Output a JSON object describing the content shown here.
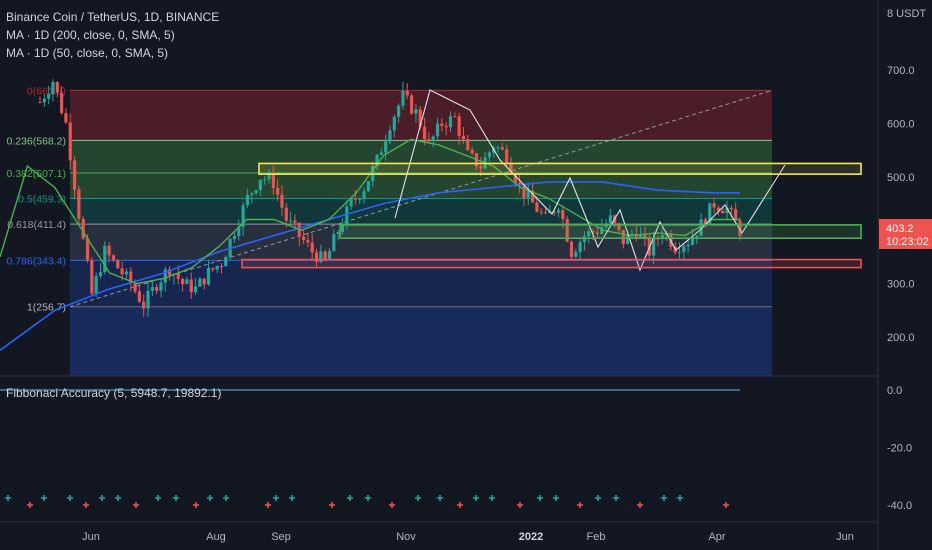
{
  "header": {
    "title": "Binance Coin / TetherUS, 1D, BINANCE",
    "ma200": "MA · 1D (200, close, 0, SMA, 5)",
    "ma50": "MA · 1D (50, close, 0, SMA, 5)",
    "currency": "8 USDT"
  },
  "indicator": {
    "label": "Fibbonaci Accuracy (5, 5948.7, 19892.1)"
  },
  "price_badge": {
    "price": "403.2",
    "countdown": "10:23:02"
  },
  "colors": {
    "background": "#131722",
    "up": "#26a69a",
    "down": "#ef5350",
    "ma200": "#2962ff",
    "ma50": "#4caf50",
    "yellow_box": "#f7e94a",
    "price_tag": "#ef5350"
  },
  "chart_data": {
    "type": "candlestick",
    "symbol": "BNBUSDT",
    "x_tick_labels": [
      "Jun",
      "Aug",
      "Sep",
      "Nov",
      "2022",
      "Feb",
      "Apr",
      "Jun"
    ],
    "y_tick_labels": [
      "700.0",
      "600.0",
      "500.0",
      "300.0",
      "200.0"
    ],
    "ylim": [
      120,
      720
    ],
    "fib_levels": [
      {
        "ratio": "0(661.8)",
        "value": 661.8
      },
      {
        "ratio": "0.236(568.2)",
        "value": 568.2
      },
      {
        "ratio": "0.382(507.1)",
        "value": 507.1
      },
      {
        "ratio": "0.5(459.3)",
        "value": 459.3
      },
      {
        "ratio": "0.618(411.4)",
        "value": 411.4
      },
      {
        "ratio": "0.786(343.4)",
        "value": 343.4
      },
      {
        "ratio": "1(256.7)",
        "value": 256.7
      }
    ],
    "zones": [
      {
        "name": "resistance",
        "low": 505,
        "high": 525
      },
      {
        "name": "support",
        "low": 385,
        "high": 410
      },
      {
        "name": "strong-support",
        "low": 330,
        "high": 345
      }
    ],
    "price_path_approx": [
      [
        0,
        640
      ],
      [
        3,
        680
      ],
      [
        6,
        600
      ],
      [
        9,
        430
      ],
      [
        12,
        280
      ],
      [
        15,
        360
      ],
      [
        18,
        330
      ],
      [
        21,
        300
      ],
      [
        24,
        260
      ],
      [
        27,
        300
      ],
      [
        30,
        330
      ],
      [
        33,
        300
      ],
      [
        36,
        290
      ],
      [
        39,
        320
      ],
      [
        42,
        340
      ],
      [
        45,
        400
      ],
      [
        48,
        460
      ],
      [
        51,
        500
      ],
      [
        54,
        490
      ],
      [
        57,
        420
      ],
      [
        60,
        390
      ],
      [
        63,
        360
      ],
      [
        66,
        340
      ],
      [
        69,
        400
      ],
      [
        72,
        450
      ],
      [
        75,
        480
      ],
      [
        78,
        530
      ],
      [
        81,
        600
      ],
      [
        84,
        650
      ],
      [
        87,
        620
      ],
      [
        90,
        560
      ],
      [
        93,
        600
      ],
      [
        96,
        610
      ],
      [
        99,
        540
      ],
      [
        102,
        520
      ],
      [
        105,
        560
      ],
      [
        108,
        540
      ],
      [
        111,
        480
      ],
      [
        114,
        450
      ],
      [
        117,
        420
      ],
      [
        120,
        450
      ],
      [
        123,
        360
      ],
      [
        126,
        390
      ],
      [
        129,
        400
      ],
      [
        132,
        420
      ],
      [
        135,
        380
      ],
      [
        138,
        400
      ],
      [
        141,
        360
      ],
      [
        144,
        400
      ],
      [
        147,
        370
      ],
      [
        150,
        380
      ],
      [
        153,
        410
      ],
      [
        156,
        450
      ],
      [
        159,
        440
      ],
      [
        162,
        400
      ]
    ],
    "ma200_path_approx": [
      [
        0,
        175
      ],
      [
        12,
        250
      ],
      [
        24,
        290
      ],
      [
        36,
        320
      ],
      [
        48,
        360
      ],
      [
        60,
        390
      ],
      [
        72,
        420
      ],
      [
        84,
        450
      ],
      [
        96,
        470
      ],
      [
        108,
        480
      ],
      [
        120,
        490
      ],
      [
        132,
        490
      ],
      [
        144,
        475
      ],
      [
        156,
        470
      ],
      [
        162,
        470
      ]
    ],
    "ma50_path_approx": [
      [
        0,
        350
      ],
      [
        6,
        520
      ],
      [
        12,
        480
      ],
      [
        18,
        400
      ],
      [
        24,
        320
      ],
      [
        30,
        300
      ],
      [
        36,
        310
      ],
      [
        42,
        330
      ],
      [
        48,
        370
      ],
      [
        54,
        420
      ],
      [
        60,
        420
      ],
      [
        66,
        400
      ],
      [
        72,
        420
      ],
      [
        78,
        470
      ],
      [
        84,
        540
      ],
      [
        90,
        570
      ],
      [
        96,
        560
      ],
      [
        102,
        540
      ],
      [
        108,
        520
      ],
      [
        114,
        480
      ],
      [
        120,
        460
      ],
      [
        126,
        430
      ],
      [
        132,
        400
      ],
      [
        138,
        390
      ],
      [
        144,
        395
      ],
      [
        150,
        390
      ],
      [
        156,
        420
      ],
      [
        162,
        420
      ]
    ],
    "indicator": {
      "y_tick_labels": [
        "0.0",
        "-20.0",
        "-40.0"
      ],
      "ylim": [
        -45,
        5
      ]
    }
  }
}
